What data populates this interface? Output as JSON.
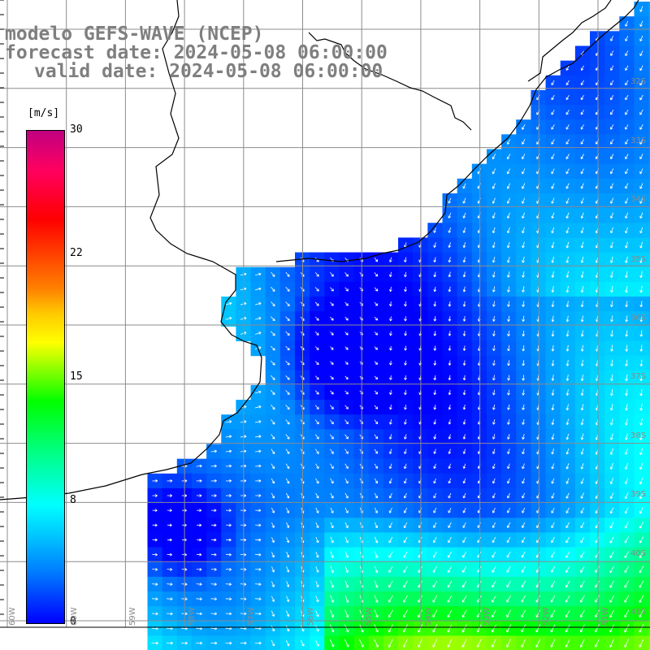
{
  "title": {
    "line1": "modelo GEFS-WAVE (NCEP)",
    "line2": "forecast date: 2024-05-08 06:00:00",
    "line3": "valid date: 2024-05-08 06:00:00"
  },
  "colorbar": {
    "unit": "[m/s]",
    "ticks": [
      "30",
      "22",
      "15",
      "8",
      "0"
    ],
    "tick_values": [
      30,
      22,
      15,
      8,
      0
    ],
    "colors": [
      "#0000ff",
      "#00c8ff",
      "#00ffff",
      "#00ff00",
      "#ffff00",
      "#ff8000",
      "#ff0000",
      "#c00080"
    ]
  },
  "map": {
    "land_color": "#ffffff",
    "coast_color": "#000000",
    "grid_color": "#8c8c8c",
    "arrow_color": "#ffffff",
    "lat_labels": [
      "32S",
      "33S",
      "34S",
      "35S",
      "36S",
      "37S",
      "38S",
      "39S",
      "40S",
      "41S"
    ],
    "lon_labels": [
      "60W",
      "59W",
      "58W",
      "57W",
      "56W",
      "55W",
      "54W",
      "53W",
      "52W",
      "51W"
    ]
  }
}
